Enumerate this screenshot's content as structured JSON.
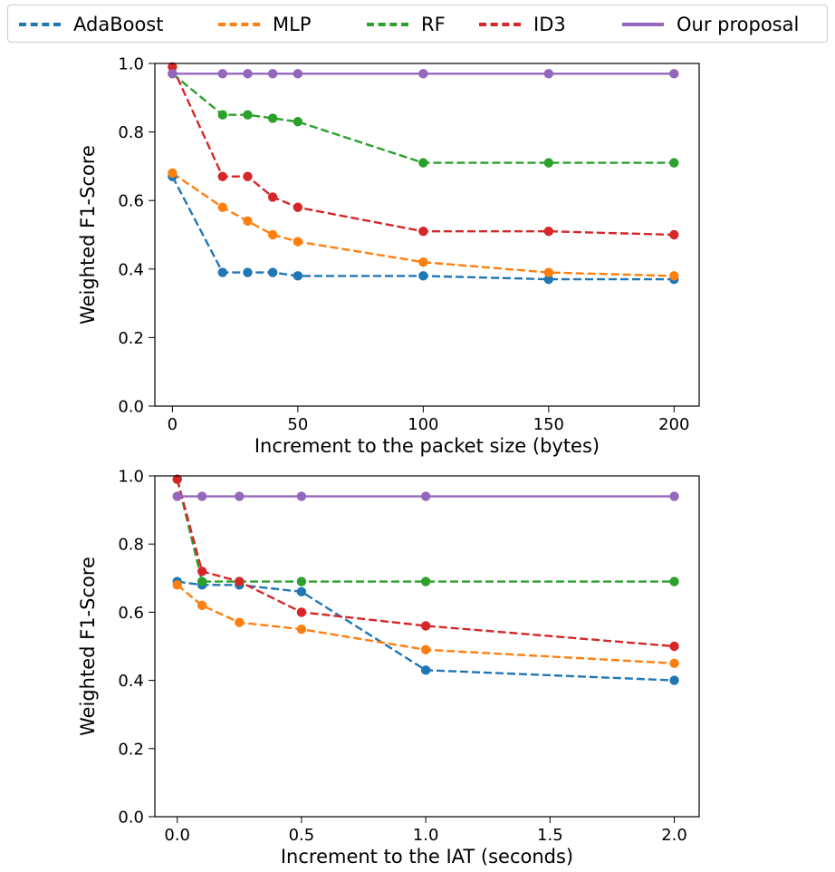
{
  "legend": [
    {
      "name": "AdaBoost",
      "color": "#1f77b4",
      "style": "dashed"
    },
    {
      "name": "MLP",
      "color": "#ff7f0e",
      "style": "dashed"
    },
    {
      "name": "RF",
      "color": "#2ca02c",
      "style": "dashed"
    },
    {
      "name": "ID3",
      "color": "#d62728",
      "style": "dashed"
    },
    {
      "name": "Our proposal",
      "color": "#9467bd",
      "style": "solid"
    }
  ],
  "chart_data": [
    {
      "type": "line",
      "xlabel": "Increment to the packet size (bytes)",
      "ylabel": "Weighted F1-Score",
      "xlim": [
        -7,
        210
      ],
      "ylim": [
        0,
        1.0
      ],
      "xticks": [
        0,
        50,
        100,
        150,
        200
      ],
      "xtick_labels": [
        "0",
        "50",
        "100",
        "150",
        "200"
      ],
      "yticks": [
        0,
        0.2,
        0.4,
        0.6,
        0.8,
        1.0
      ],
      "ytick_labels": [
        "0.0",
        "0.2",
        "0.4",
        "0.6",
        "0.8",
        "1.0"
      ],
      "x": [
        0,
        20,
        30,
        40,
        50,
        100,
        150,
        200
      ],
      "series": [
        {
          "name": "AdaBoost",
          "values": [
            0.67,
            0.39,
            0.39,
            0.39,
            0.38,
            0.38,
            0.37,
            0.37
          ]
        },
        {
          "name": "MLP",
          "values": [
            0.68,
            0.58,
            0.54,
            0.5,
            0.48,
            0.42,
            0.39,
            0.38
          ]
        },
        {
          "name": "RF",
          "values": [
            0.97,
            0.85,
            0.85,
            0.84,
            0.83,
            0.71,
            0.71,
            0.71
          ]
        },
        {
          "name": "ID3",
          "values": [
            0.99,
            0.67,
            0.67,
            0.61,
            0.58,
            0.51,
            0.51,
            0.5
          ]
        },
        {
          "name": "Our proposal",
          "values": [
            0.97,
            0.97,
            0.97,
            0.97,
            0.97,
            0.97,
            0.97,
            0.97
          ]
        }
      ]
    },
    {
      "type": "line",
      "xlabel": "Increment to the IAT (seconds)",
      "ylabel": "Weighted F1-Score",
      "xlim": [
        -0.09,
        2.1
      ],
      "ylim": [
        0,
        1.0
      ],
      "xticks": [
        0,
        0.5,
        1.0,
        1.5,
        2.0
      ],
      "xtick_labels": [
        "0.0",
        "0.5",
        "1.0",
        "1.5",
        "2.0"
      ],
      "yticks": [
        0,
        0.2,
        0.4,
        0.6,
        0.8,
        1.0
      ],
      "ytick_labels": [
        "0.0",
        "0.2",
        "0.4",
        "0.6",
        "0.8",
        "1.0"
      ],
      "x": [
        0,
        0.1,
        0.25,
        0.5,
        1.0,
        2.0
      ],
      "series": [
        {
          "name": "AdaBoost",
          "values": [
            0.69,
            0.68,
            0.68,
            0.66,
            0.43,
            0.4
          ]
        },
        {
          "name": "MLP",
          "values": [
            0.68,
            0.62,
            0.57,
            0.55,
            0.49,
            0.45
          ]
        },
        {
          "name": "RF",
          "values": [
            0.99,
            0.69,
            0.69,
            0.69,
            0.69,
            0.69
          ]
        },
        {
          "name": "ID3",
          "values": [
            0.99,
            0.72,
            0.69,
            0.6,
            0.56,
            0.5
          ]
        },
        {
          "name": "Our proposal",
          "values": [
            0.94,
            0.94,
            0.94,
            0.94,
            0.94,
            0.94
          ]
        }
      ]
    }
  ]
}
